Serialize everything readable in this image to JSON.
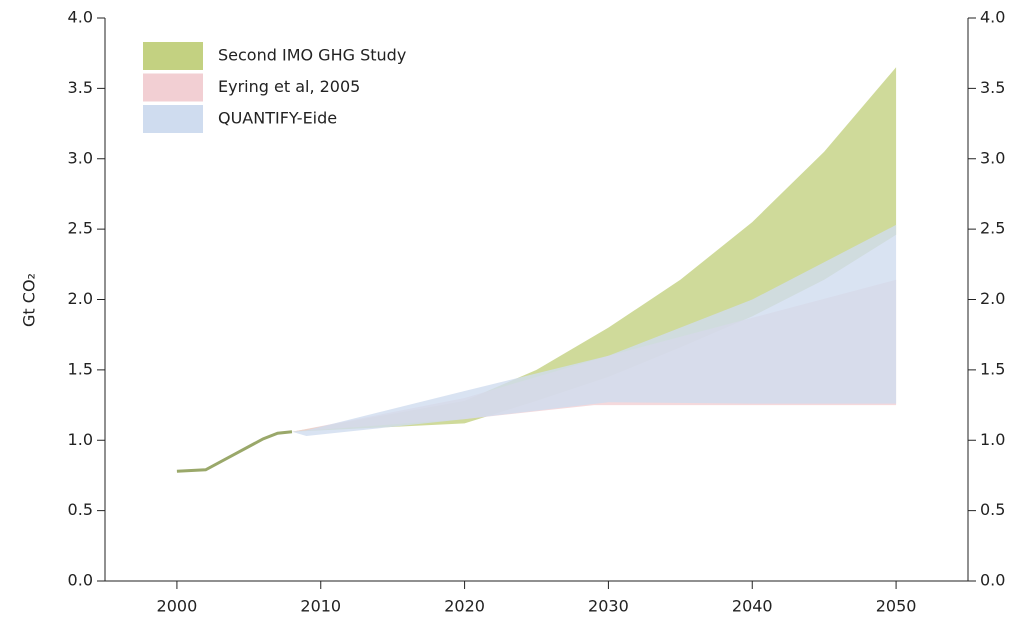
{
  "chart_data": {
    "type": "range_area",
    "y_label": "Gt CO₂",
    "xlim": [
      1995,
      2055
    ],
    "xticks": [
      2000,
      2010,
      2020,
      2030,
      2040,
      2050
    ],
    "ylim": [
      0,
      4
    ],
    "yticks": [
      {
        "value": 0,
        "label": "0.0"
      },
      0.5,
      {
        "value": 1,
        "label": "1.0"
      },
      1.5,
      {
        "value": 2,
        "label": "2.0"
      },
      2.5,
      {
        "value": 3,
        "label": "3.0"
      },
      3.5,
      {
        "value": 4,
        "label": "4.0"
      }
    ],
    "y2lim": [
      0,
      4
    ],
    "y2ticks": [
      {
        "value": 0,
        "label": "0.0"
      },
      0.5,
      {
        "value": 1,
        "label": "1.0"
      },
      1.5,
      {
        "value": 2,
        "label": "2.0"
      },
      2.5,
      {
        "value": 3,
        "label": "3.0"
      },
      3.5,
      {
        "value": 4,
        "label": "4.0"
      }
    ],
    "legend": "upper left",
    "history": {
      "color": "#9aa86a",
      "x": [
        2000,
        2002,
        2004,
        2006,
        2007,
        2008
      ],
      "values": [
        0.78,
        0.79,
        0.9,
        1.01,
        1.05,
        1.06
      ]
    },
    "series": [
      {
        "name": "Second IMO GHG Study",
        "color": "#c3d181",
        "x": [
          2008,
          2020,
          2025,
          2030,
          2035,
          2040,
          2045,
          2050
        ],
        "upper": [
          1.06,
          1.28,
          1.5,
          1.8,
          2.14,
          2.55,
          3.05,
          3.65
        ],
        "lower": [
          1.06,
          1.12,
          1.28,
          1.45,
          1.66,
          1.88,
          2.14,
          2.46
        ]
      },
      {
        "name": "Eyring et al, 2005",
        "color": "#f2cfd3",
        "x": [
          2008,
          2020,
          2029,
          2030,
          2040,
          2050
        ],
        "upper": [
          1.06,
          1.3,
          1.57,
          1.6,
          1.87,
          2.14
        ],
        "lower": [
          1.06,
          1.15,
          1.25,
          1.25,
          1.25,
          1.25
        ]
      },
      {
        "name": "QUANTIFY-Eide",
        "color": "#cfdcef",
        "x": [
          2008,
          2009,
          2020,
          2030,
          2040,
          2050
        ],
        "upper": [
          1.06,
          1.07,
          1.35,
          1.6,
          2.0,
          2.53
        ],
        "lower": [
          1.06,
          1.03,
          1.15,
          1.27,
          1.26,
          1.26
        ]
      }
    ]
  }
}
